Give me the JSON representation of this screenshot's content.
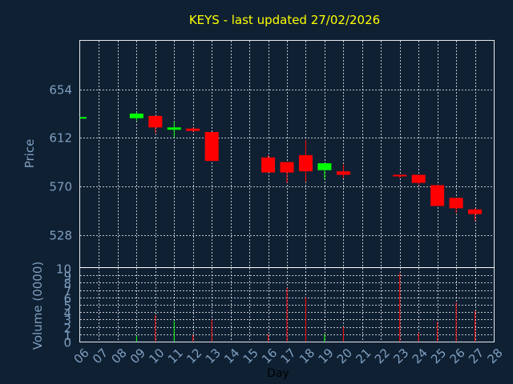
{
  "chart_data": {
    "type": "candlestick",
    "title": "KEYS - last updated 27/02/2026",
    "price_panel": {
      "ylabel": "Price",
      "yticks": [
        528,
        570,
        612,
        654
      ],
      "ylim": [
        500,
        696
      ]
    },
    "volume_panel": {
      "ylabel": "Volume (0000)",
      "yticks": [
        0,
        1,
        2,
        3,
        4,
        5,
        6,
        7,
        8,
        9,
        10
      ],
      "ylim": [
        0,
        10
      ]
    },
    "xlabel": "Day",
    "xticks": [
      "06",
      "07",
      "08",
      "09",
      "10",
      "11",
      "12",
      "13",
      "14",
      "15",
      "16",
      "17",
      "18",
      "19",
      "20",
      "21",
      "22",
      "23",
      "24",
      "25",
      "26",
      "27",
      "28"
    ],
    "grid": true,
    "colors": {
      "background": "#0f2033",
      "up": "#00ff00",
      "down": "#ff0000",
      "title": "#ffff00",
      "axis_text": "#7f9fbf",
      "grid": "#ffffff"
    },
    "candles": [
      {
        "day": "06",
        "open": 629,
        "close": 630,
        "high": 630,
        "low": 629,
        "volume": 0
      },
      {
        "day": "09",
        "open": 629,
        "close": 633,
        "high": 634,
        "low": 627,
        "volume": 0.8
      },
      {
        "day": "10",
        "open": 631,
        "close": 621,
        "high": 631,
        "low": 616,
        "volume": 3.6
      },
      {
        "day": "11",
        "open": 619,
        "close": 621,
        "high": 626,
        "low": 612,
        "volume": 2.8
      },
      {
        "day": "12",
        "open": 620,
        "close": 618,
        "high": 621,
        "low": 617,
        "volume": 0.9
      },
      {
        "day": "13",
        "open": 617,
        "close": 592,
        "high": 617,
        "low": 592,
        "volume": 3.0
      },
      {
        "day": "16",
        "open": 595,
        "close": 582,
        "high": 597,
        "low": 582,
        "volume": 1.0
      },
      {
        "day": "17",
        "open": 591,
        "close": 582,
        "high": 591,
        "low": 573,
        "volume": 7.3
      },
      {
        "day": "18",
        "open": 597,
        "close": 583,
        "high": 610,
        "low": 574,
        "volume": 6.0
      },
      {
        "day": "19",
        "open": 584,
        "close": 590,
        "high": 590,
        "low": 576,
        "volume": 1.0
      },
      {
        "day": "20",
        "open": 583,
        "close": 580,
        "high": 589,
        "low": 577,
        "volume": 2.0
      },
      {
        "day": "23",
        "open": 580,
        "close": 579,
        "high": 580,
        "low": 577,
        "volume": 9.3
      },
      {
        "day": "24",
        "open": 580,
        "close": 573,
        "high": 580,
        "low": 571,
        "volume": 1.2
      },
      {
        "day": "25",
        "open": 571,
        "close": 553,
        "high": 571,
        "low": 553,
        "volume": 2.7
      },
      {
        "day": "26",
        "open": 560,
        "close": 551,
        "high": 560,
        "low": 547,
        "volume": 5.3
      },
      {
        "day": "27",
        "open": 550,
        "close": 546,
        "high": 551,
        "low": 540,
        "volume": 4.2
      }
    ]
  }
}
